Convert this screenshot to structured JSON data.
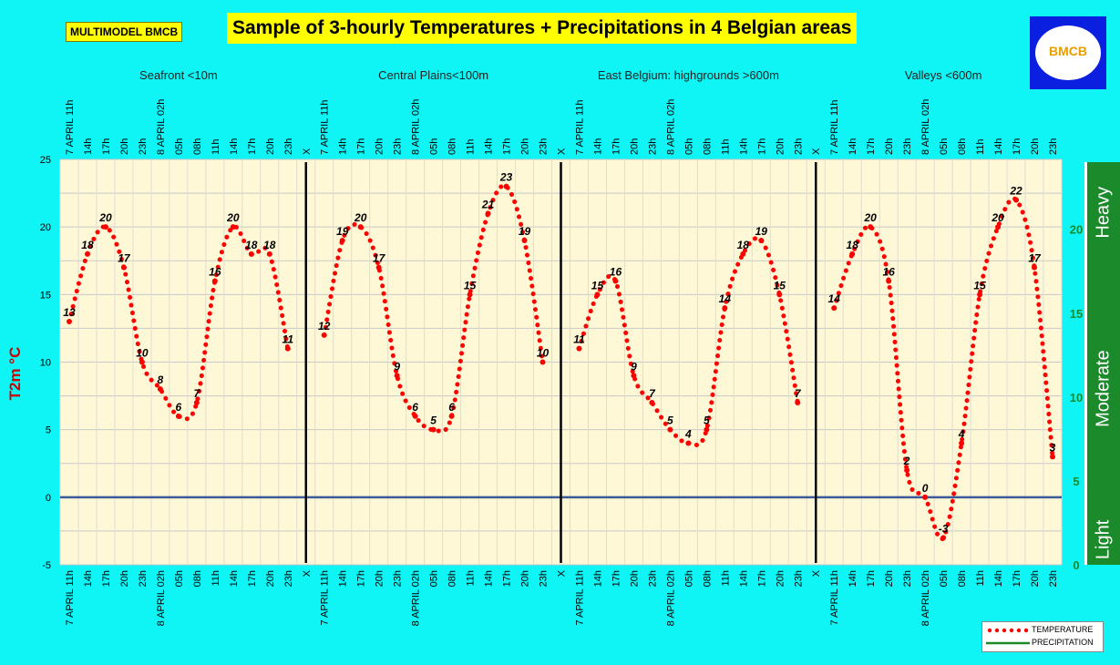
{
  "badge_left": "MULTIMODEL BMCB",
  "title": "Sample of 3-hourly Temperatures + Precipitations in 4 Belgian areas",
  "logo_text": "BMCB",
  "colors": {
    "background": "#00ffff",
    "plot_bg": "#fff8d6",
    "temperature": "#ff0000",
    "precipitation": "#1a8a2a",
    "zero_line": "#3a5a9a",
    "badge": "#ffff00",
    "ylabel": "#cc0000",
    "right_axis_text": "#1a8a2a",
    "logo": "#0a1fe0"
  },
  "chart_data": {
    "type": "line",
    "ylabel": "T2m °C",
    "ylim": [
      -5,
      25
    ],
    "yticks": [
      -5,
      0,
      5,
      10,
      15,
      20,
      25
    ],
    "y2lim": [
      0,
      24
    ],
    "y2ticks": [
      0,
      5,
      10,
      15,
      20
    ],
    "right_axis_bands": [
      "Light",
      "Moderate",
      "Heavy"
    ],
    "grid": true,
    "legend_position": "bottom-right",
    "legend": [
      "TEMPERATURE",
      "PRECIPITATION"
    ],
    "x_separator_label": "X",
    "panels": [
      {
        "name": "Seafront <10m",
        "x": [
          "7 APRIL 11h",
          "14h",
          "17h",
          "20h",
          "23h",
          "8 APRIL 02h",
          "05h",
          "08h",
          "11h",
          "14h",
          "17h",
          "20h",
          "23h"
        ],
        "temperature": [
          13,
          18,
          20,
          17,
          10,
          8,
          6,
          7,
          16,
          20,
          18,
          18,
          11
        ],
        "labels": [
          "13",
          "18",
          "20",
          "17",
          "10",
          "8",
          "6",
          "7",
          "16",
          "20",
          "18",
          "18",
          "11"
        ]
      },
      {
        "name": "Central Plains<100m",
        "x": [
          "7 APRIL 11h",
          "14h",
          "17h",
          "20h",
          "23h",
          "8 APRIL 02h",
          "05h",
          "08h",
          "11h",
          "14h",
          "17h",
          "20h",
          "23h"
        ],
        "temperature": [
          12,
          19,
          20,
          17,
          9,
          6,
          5,
          6,
          15,
          21,
          23,
          19,
          10
        ],
        "labels": [
          "12",
          "19",
          "20",
          "17",
          "9",
          "6",
          "5",
          "6",
          "15",
          "21",
          "23",
          "19",
          "10"
        ]
      },
      {
        "name": "East Belgium:     highgrounds >600m",
        "x": [
          "7 APRIL 11h",
          "14h",
          "17h",
          "20h",
          "23h",
          "8 APRIL 02h",
          "05h",
          "08h",
          "11h",
          "14h",
          "17h",
          "20h",
          "23h"
        ],
        "temperature": [
          11,
          15,
          16,
          9,
          7,
          5,
          4,
          5,
          14,
          18,
          19,
          15,
          7
        ],
        "labels": [
          "11",
          "15",
          "16",
          "9",
          "7",
          "5",
          "4",
          "5",
          "14",
          "18",
          "19",
          "15",
          "7"
        ]
      },
      {
        "name": "Valleys <600m",
        "x": [
          "7 APRIL 11h",
          "14h",
          "17h",
          "20h",
          "23h",
          "8 APRIL 02h",
          "05h",
          "08h",
          "11h",
          "14h",
          "17h",
          "20h",
          "23h"
        ],
        "temperature": [
          14,
          18,
          20,
          16,
          2,
          0,
          -3,
          4,
          15,
          20,
          22,
          17,
          3
        ],
        "labels": [
          "14",
          "18",
          "20",
          "16",
          "2",
          "0",
          "-3",
          "4",
          "15",
          "20",
          "22",
          "17",
          "3"
        ]
      }
    ]
  }
}
